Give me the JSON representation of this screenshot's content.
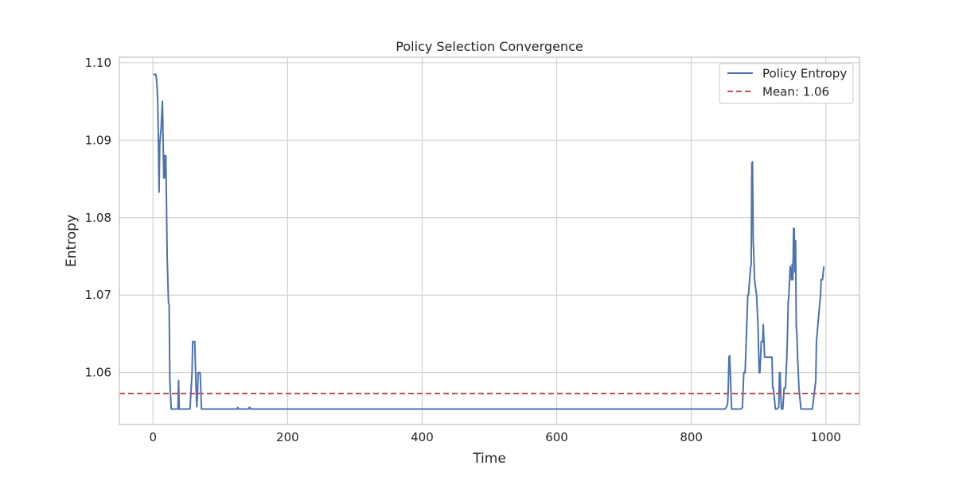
{
  "chart_data": {
    "type": "line",
    "title": "Policy Selection Convergence",
    "xlabel": "Time",
    "ylabel": "Entropy",
    "xlim": [
      -50,
      1050
    ],
    "ylim": [
      1.0533,
      1.1007
    ],
    "xticks": [
      0,
      200,
      400,
      600,
      800,
      1000
    ],
    "yticks": [
      1.06,
      1.07,
      1.08,
      1.09,
      1.1
    ],
    "xtick_labels": [
      "0",
      "200",
      "400",
      "600",
      "800",
      "1000"
    ],
    "ytick_labels": [
      "1.06",
      "1.07",
      "1.08",
      "1.09",
      "1.10"
    ],
    "grid": true,
    "legend_position": "top-right",
    "colors": {
      "series": "#4c72b0",
      "mean": "#c44e52",
      "grid": "#d0d0d0",
      "frame": "#cccccc"
    },
    "series": [
      {
        "name": "Policy Entropy",
        "x": [
          0,
          2,
          4,
          5,
          6,
          7,
          8,
          9,
          10,
          12,
          14,
          16,
          17,
          18,
          19,
          20,
          21,
          23,
          24,
          25,
          27,
          28,
          29,
          37,
          38,
          39,
          46,
          55,
          58,
          59,
          60,
          61,
          62,
          63,
          64,
          65,
          66,
          67,
          68,
          69,
          70,
          71,
          72,
          75,
          80,
          100,
          125,
          126,
          127,
          142,
          143,
          144,
          145,
          150,
          200,
          300,
          400,
          500,
          600,
          700,
          800,
          846,
          848,
          850,
          852,
          854,
          855,
          856,
          857,
          858,
          860,
          862,
          870,
          874,
          876,
          878,
          880,
          882,
          884,
          885,
          888,
          889,
          890,
          891,
          892,
          893,
          894,
          897,
          899,
          900,
          901,
          902,
          904,
          905,
          906,
          907,
          908,
          909,
          912,
          915,
          920,
          921,
          922,
          925,
          927,
          930,
          931,
          932,
          933,
          934,
          936,
          938,
          940,
          942,
          943,
          944,
          945,
          947,
          949,
          950,
          951,
          952,
          953,
          954,
          955,
          956,
          957,
          958,
          960,
          963,
          965,
          966,
          970,
          975,
          980,
          985,
          986,
          992,
          993,
          994,
          995,
          997
        ],
        "y": [
          1.0985,
          1.0985,
          1.0985,
          1.098,
          1.097,
          1.095,
          1.09,
          1.0833,
          1.0895,
          1.0915,
          1.095,
          1.0851,
          1.088,
          1.0852,
          1.088,
          1.082,
          1.075,
          1.069,
          1.0688,
          1.059,
          1.0553,
          1.0553,
          1.0553,
          1.0553,
          1.059,
          1.0553,
          1.0553,
          1.0553,
          1.06,
          1.064,
          1.064,
          1.064,
          1.064,
          1.061,
          1.058,
          1.0556,
          1.057,
          1.06,
          1.06,
          1.06,
          1.06,
          1.058,
          1.0553,
          1.0553,
          1.0553,
          1.0553,
          1.0553,
          1.0555,
          1.0553,
          1.0553,
          1.0555,
          1.0555,
          1.0553,
          1.0553,
          1.0553,
          1.0553,
          1.0553,
          1.0553,
          1.0553,
          1.0553,
          1.0553,
          1.0553,
          1.0553,
          1.0553,
          1.0555,
          1.056,
          1.058,
          1.062,
          1.0622,
          1.06,
          1.0553,
          1.0553,
          1.0553,
          1.0553,
          1.0555,
          1.06,
          1.06,
          1.065,
          1.07,
          1.07,
          1.0735,
          1.074,
          1.087,
          1.0872,
          1.077,
          1.075,
          1.072,
          1.07,
          1.0665,
          1.063,
          1.06,
          1.06,
          1.064,
          1.064,
          1.064,
          1.0662,
          1.064,
          1.062,
          1.062,
          1.062,
          1.062,
          1.058,
          1.058,
          1.0553,
          1.0553,
          1.0555,
          1.06,
          1.06,
          1.057,
          1.0553,
          1.0553,
          1.058,
          1.058,
          1.062,
          1.065,
          1.069,
          1.07,
          1.0737,
          1.072,
          1.074,
          1.072,
          1.0786,
          1.0786,
          1.073,
          1.077,
          1.066,
          1.065,
          1.062,
          1.058,
          1.0553,
          1.0553,
          1.0553,
          1.0553,
          1.0553,
          1.0553,
          1.059,
          1.064,
          1.07,
          1.072,
          1.072,
          1.072,
          1.0737
        ]
      },
      {
        "name": "Mean: 1.06",
        "style": "dashed",
        "y": 1.0573
      }
    ]
  }
}
